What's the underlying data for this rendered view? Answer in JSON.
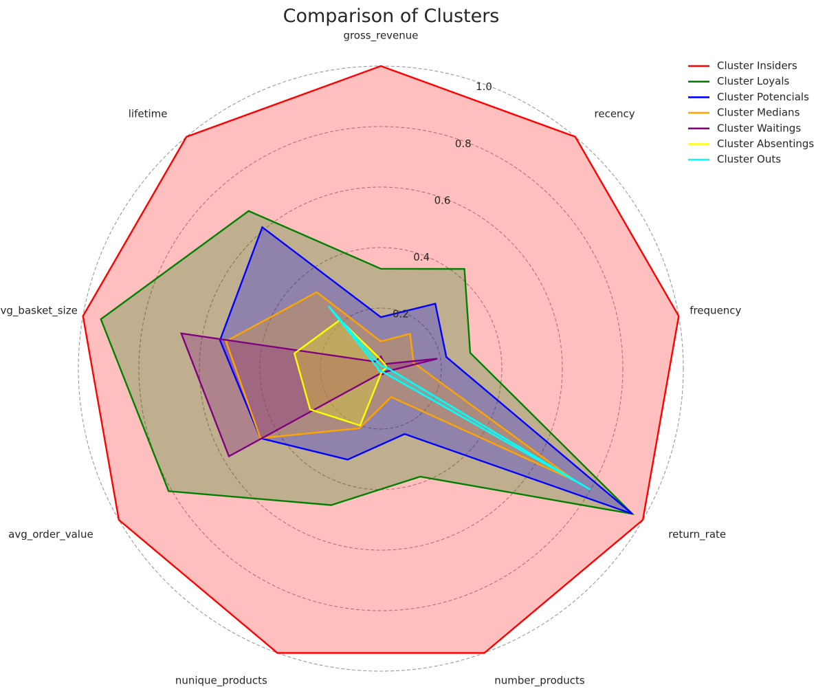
{
  "chart_data": {
    "type": "radar",
    "title": "Comparison of Clusters",
    "axes": [
      "gross_revenue",
      "recency",
      "frequency",
      "return_rate",
      "number_products",
      "nunique_products",
      "avg_order_value",
      "avg_basket_size",
      "lifetime"
    ],
    "rlim": [
      0,
      1.0
    ],
    "r_ticks": [
      0.2,
      0.4,
      0.6,
      0.8,
      1.0
    ],
    "r_tick_labels": [
      "0.2",
      "0.4",
      "0.6",
      "0.8",
      "1.0"
    ],
    "grid": true,
    "legend_position": "top-right",
    "series": [
      {
        "name": "Cluster Insiders",
        "color": "#ff0000",
        "fill": true,
        "values": [
          1.0,
          1.0,
          1.0,
          1.0,
          1.0,
          1.0,
          1.0,
          1.0,
          1.0
        ]
      },
      {
        "name": "Cluster Loyals",
        "color": "#008000",
        "fill": true,
        "values": [
          0.33,
          0.43,
          0.3,
          0.96,
          0.38,
          0.48,
          0.81,
          0.94,
          0.68
        ]
      },
      {
        "name": "Cluster Potencials",
        "color": "#0000ff",
        "fill": true,
        "values": [
          0.17,
          0.28,
          0.22,
          0.96,
          0.23,
          0.32,
          0.46,
          0.54,
          0.61
        ]
      },
      {
        "name": "Cluster Medians",
        "color": "#ffa500",
        "fill": true,
        "values": [
          0.09,
          0.15,
          0.11,
          0.74,
          0.1,
          0.21,
          0.46,
          0.52,
          0.33
        ]
      },
      {
        "name": "Cluster Waitings",
        "color": "#800080",
        "fill": true,
        "values": [
          0.04,
          0.02,
          0.19,
          0.02,
          0.02,
          0.02,
          0.58,
          0.67,
          0.03
        ]
      },
      {
        "name": "Cluster Absentings",
        "color": "#ffff00",
        "fill": true,
        "values": [
          0.03,
          0.02,
          0.02,
          0.01,
          0.01,
          0.2,
          0.27,
          0.29,
          0.21
        ]
      },
      {
        "name": "Cluster Outs",
        "color": "#00ffff",
        "fill": true,
        "values": [
          0.01,
          0.01,
          0.02,
          0.8,
          0.01,
          0.01,
          0.01,
          0.01,
          0.27
        ]
      }
    ]
  }
}
